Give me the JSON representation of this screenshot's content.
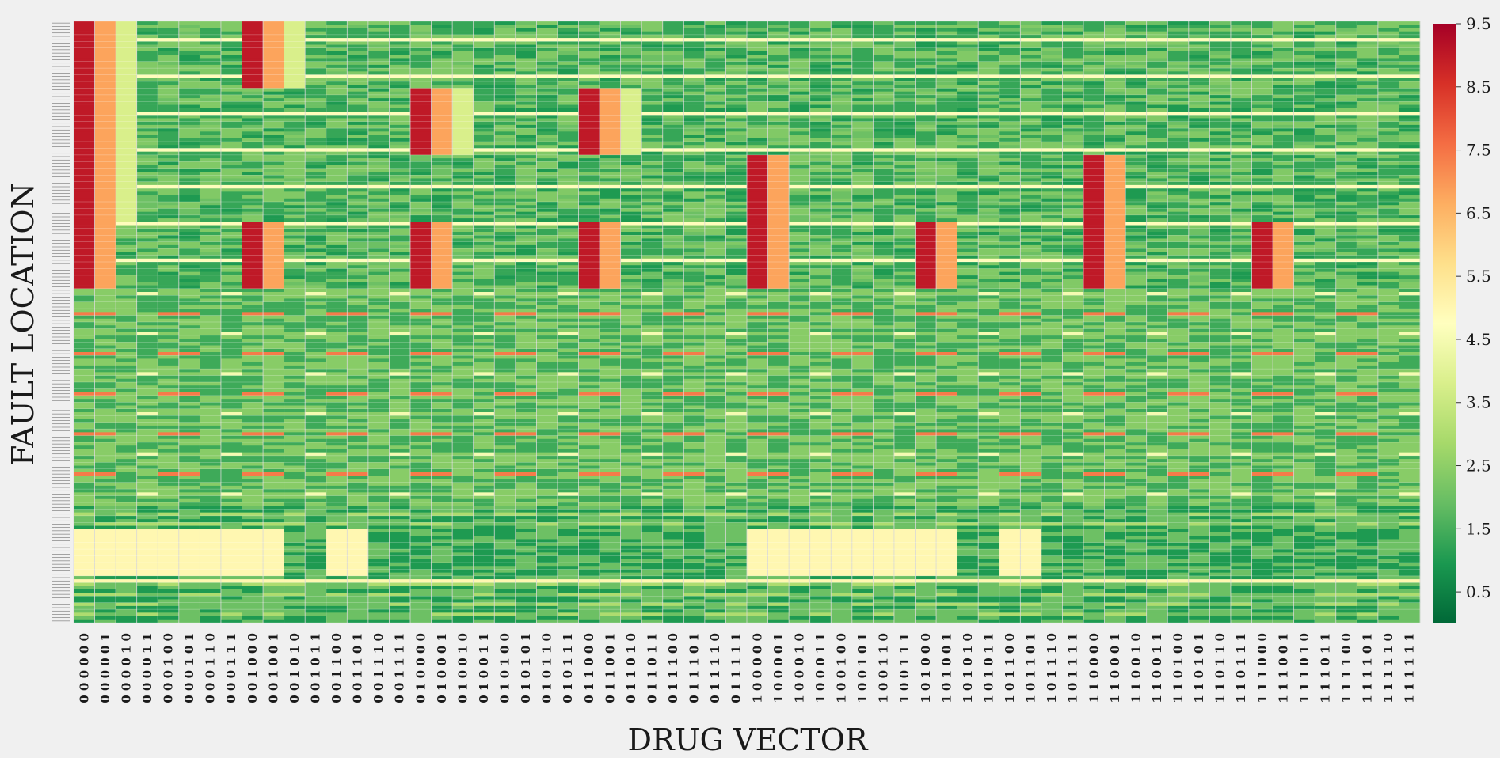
{
  "chart_data": {
    "type": "heatmap",
    "xlabel": "DRUG VECTOR",
    "ylabel": "FAULT LOCATION",
    "x_categories": [
      "000000",
      "000001",
      "000010",
      "000011",
      "000100",
      "000101",
      "000110",
      "000111",
      "001000",
      "001001",
      "001010",
      "001011",
      "001100",
      "001101",
      "001110",
      "001111",
      "010000",
      "010001",
      "010010",
      "010011",
      "010100",
      "010101",
      "010110",
      "010111",
      "011000",
      "011001",
      "011010",
      "011011",
      "011100",
      "011101",
      "011110",
      "011111",
      "100000",
      "100001",
      "100010",
      "100011",
      "100100",
      "100101",
      "100110",
      "100111",
      "101000",
      "101001",
      "101010",
      "101011",
      "101100",
      "101101",
      "101110",
      "101111",
      "110000",
      "110001",
      "110010",
      "110011",
      "110100",
      "110101",
      "110110",
      "110111",
      "111000",
      "111001",
      "111010",
      "111011",
      "111100",
      "111101",
      "111110",
      "111111"
    ],
    "n_rows": 180,
    "value_range": [
      0,
      9.5
    ],
    "colormap": "RdYlGn_r",
    "colorbar_ticks": [
      0.5,
      1.5,
      2.5,
      3.5,
      4.5,
      5.5,
      6.5,
      7.5,
      8.5,
      9.5
    ],
    "grid_lines": true,
    "description_of_values": "Blocks of high value (~9) at drug vectors where bits 2 and 3 are 0 for upper fault-location groups; moderate values (~6-7) and (~4) adjacent; lower rows mostly low values (1-3) with periodic stripes; a band of ~5 values across columns where bits 1 and 4 are 0 near the bottom."
  }
}
